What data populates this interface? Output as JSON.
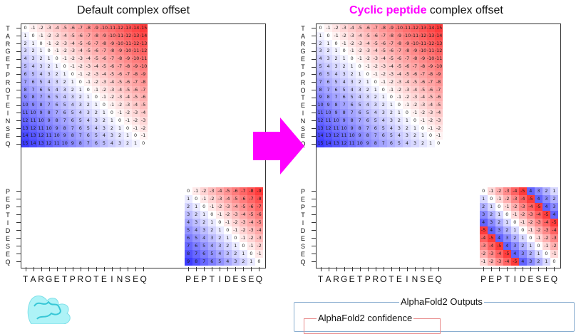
{
  "left_title": "Default complex offset",
  "right_title": {
    "highlight": "Cyclic peptide",
    "rest": " complex offset"
  },
  "target_letters": [
    "T",
    "A",
    "R",
    "G",
    "E",
    "T",
    "P",
    "R",
    "O",
    "T",
    "E",
    "I",
    "N",
    "S",
    "E",
    "Q"
  ],
  "peptide_letters": [
    "P",
    "E",
    "P",
    "T",
    "I",
    "D",
    "E",
    "S",
    "E",
    "Q"
  ],
  "outputs_label": "AlphaFold2 Outputs",
  "confidence_label": "AlphaFold2 confidence",
  "colors": {
    "arrow": "#ff00ff",
    "red": "#ff3b3b",
    "blue": "#3b3bff",
    "outputs_border": "#8aaed0",
    "confidence_border": "#e88a8a"
  },
  "icons": {
    "arrow": "right-arrow-icon",
    "protein": "protein-structure-thumbnail"
  }
}
